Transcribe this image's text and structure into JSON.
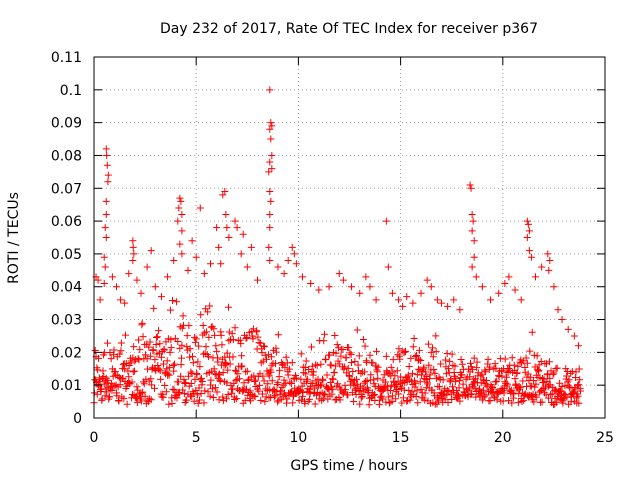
{
  "chart_data": {
    "type": "scatter",
    "title": "Day 232 of 2017, Rate Of TEC Index for receiver p367",
    "xlabel": "GPS time / hours",
    "ylabel": "ROTI / TECUs",
    "xlim": [
      0,
      25
    ],
    "ylim": [
      0,
      0.11
    ],
    "xticks": [
      0,
      5,
      10,
      15,
      20,
      25
    ],
    "yticks": [
      0,
      0.01,
      0.02,
      0.03,
      0.04,
      0.05,
      0.06,
      0.07,
      0.08,
      0.09,
      0.1,
      0.11
    ],
    "grid": true,
    "marker": "plus",
    "series": [
      {
        "color": "#ff0000",
        "points": [
          [
            0.1,
            0.043
          ],
          [
            0.2,
            0.042
          ],
          [
            0.3,
            0.036
          ],
          [
            0.5,
            0.041
          ],
          [
            0.6,
            0.082
          ],
          [
            0.62,
            0.08
          ],
          [
            0.65,
            0.077
          ],
          [
            0.7,
            0.074
          ],
          [
            0.68,
            0.072
          ],
          [
            0.6,
            0.066
          ],
          [
            0.6,
            0.062
          ],
          [
            0.55,
            0.058
          ],
          [
            0.6,
            0.055
          ],
          [
            0.5,
            0.049
          ],
          [
            0.55,
            0.046
          ],
          [
            0.9,
            0.043
          ],
          [
            1.1,
            0.04
          ],
          [
            1.3,
            0.036
          ],
          [
            1.5,
            0.035
          ],
          [
            1.7,
            0.044
          ],
          [
            1.9,
            0.054
          ],
          [
            1.92,
            0.052
          ],
          [
            1.95,
            0.05
          ],
          [
            1.9,
            0.048
          ],
          [
            2.1,
            0.042
          ],
          [
            2.3,
            0.038
          ],
          [
            2.6,
            0.046
          ],
          [
            2.8,
            0.051
          ],
          [
            3.0,
            0.04
          ],
          [
            3.3,
            0.037
          ],
          [
            3.6,
            0.043
          ],
          [
            3.9,
            0.048
          ],
          [
            4.1,
            0.06
          ],
          [
            4.15,
            0.064
          ],
          [
            4.2,
            0.067
          ],
          [
            4.25,
            0.066
          ],
          [
            4.3,
            0.062
          ],
          [
            4.3,
            0.057
          ],
          [
            4.2,
            0.053
          ],
          [
            4.3,
            0.05
          ],
          [
            4.6,
            0.045
          ],
          [
            4.8,
            0.054
          ],
          [
            5.0,
            0.049
          ],
          [
            5.2,
            0.064
          ],
          [
            5.4,
            0.044
          ],
          [
            5.7,
            0.047
          ],
          [
            6.0,
            0.058
          ],
          [
            6.1,
            0.052
          ],
          [
            6.2,
            0.047
          ],
          [
            6.3,
            0.068
          ],
          [
            6.4,
            0.069
          ],
          [
            6.45,
            0.062
          ],
          [
            6.5,
            0.058
          ],
          [
            6.6,
            0.055
          ],
          [
            6.9,
            0.06
          ],
          [
            7.0,
            0.058
          ],
          [
            7.2,
            0.05
          ],
          [
            7.3,
            0.056
          ],
          [
            7.5,
            0.046
          ],
          [
            7.7,
            0.052
          ],
          [
            8.0,
            0.042
          ],
          [
            8.6,
            0.1
          ],
          [
            8.65,
            0.09
          ],
          [
            8.7,
            0.089
          ],
          [
            8.6,
            0.088
          ],
          [
            8.65,
            0.085
          ],
          [
            8.7,
            0.08
          ],
          [
            8.6,
            0.078
          ],
          [
            8.7,
            0.076
          ],
          [
            8.55,
            0.075
          ],
          [
            8.6,
            0.069
          ],
          [
            8.65,
            0.066
          ],
          [
            8.6,
            0.062
          ],
          [
            8.6,
            0.058
          ],
          [
            8.55,
            0.052
          ],
          [
            8.6,
            0.048
          ],
          [
            9.0,
            0.046
          ],
          [
            9.3,
            0.044
          ],
          [
            9.5,
            0.048
          ],
          [
            9.7,
            0.052
          ],
          [
            9.8,
            0.05
          ],
          [
            9.9,
            0.047
          ],
          [
            10.2,
            0.043
          ],
          [
            10.6,
            0.041
          ],
          [
            11.0,
            0.039
          ],
          [
            11.5,
            0.04
          ],
          [
            12.0,
            0.044
          ],
          [
            12.2,
            0.042
          ],
          [
            12.6,
            0.04
          ],
          [
            13.0,
            0.038
          ],
          [
            13.3,
            0.043
          ],
          [
            13.5,
            0.04
          ],
          [
            13.8,
            0.036
          ],
          [
            14.3,
            0.06
          ],
          [
            14.4,
            0.046
          ],
          [
            14.6,
            0.038
          ],
          [
            14.9,
            0.036
          ],
          [
            15.1,
            0.034
          ],
          [
            15.3,
            0.037
          ],
          [
            15.6,
            0.035
          ],
          [
            16.0,
            0.038
          ],
          [
            16.3,
            0.042
          ],
          [
            16.5,
            0.04
          ],
          [
            16.8,
            0.036
          ],
          [
            17.0,
            0.035
          ],
          [
            17.3,
            0.034
          ],
          [
            17.6,
            0.036
          ],
          [
            17.9,
            0.033
          ],
          [
            18.4,
            0.071
          ],
          [
            18.45,
            0.07
          ],
          [
            18.5,
            0.062
          ],
          [
            18.55,
            0.06
          ],
          [
            18.5,
            0.057
          ],
          [
            18.6,
            0.054
          ],
          [
            18.6,
            0.049
          ],
          [
            18.5,
            0.046
          ],
          [
            18.7,
            0.043
          ],
          [
            19.0,
            0.04
          ],
          [
            19.4,
            0.036
          ],
          [
            19.8,
            0.038
          ],
          [
            20.1,
            0.041
          ],
          [
            20.3,
            0.043
          ],
          [
            20.6,
            0.039
          ],
          [
            20.9,
            0.036
          ],
          [
            21.2,
            0.06
          ],
          [
            21.25,
            0.059
          ],
          [
            21.3,
            0.057
          ],
          [
            21.2,
            0.055
          ],
          [
            21.3,
            0.051
          ],
          [
            21.4,
            0.049
          ],
          [
            21.6,
            0.043
          ],
          [
            21.9,
            0.046
          ],
          [
            22.2,
            0.05
          ],
          [
            22.3,
            0.048
          ],
          [
            22.25,
            0.045
          ],
          [
            22.5,
            0.04
          ],
          [
            22.7,
            0.033
          ],
          [
            22.9,
            0.03
          ],
          [
            23.2,
            0.027
          ],
          [
            23.5,
            0.025
          ],
          [
            23.7,
            0.022
          ]
        ]
      }
    ],
    "band": {
      "x_start": 0.0,
      "x_end": 23.8,
      "x_step": 0.02,
      "base_min": 0.004,
      "base_spread": 0.02,
      "tail_spread": 0.012,
      "tail_prob": 0.35,
      "activity": [
        [
          0,
          0.55
        ],
        [
          2,
          0.9
        ],
        [
          4,
          1.0
        ],
        [
          6,
          1.05
        ],
        [
          8,
          1.0
        ],
        [
          9.2,
          0.55
        ],
        [
          10,
          0.45
        ],
        [
          11,
          0.65
        ],
        [
          12,
          0.9
        ],
        [
          13,
          0.8
        ],
        [
          14.2,
          0.45
        ],
        [
          15,
          0.7
        ],
        [
          16,
          0.75
        ],
        [
          17.5,
          0.55
        ],
        [
          18.5,
          0.6
        ],
        [
          19.5,
          0.45
        ],
        [
          20.5,
          0.65
        ],
        [
          21.5,
          0.7
        ],
        [
          22.5,
          0.5
        ],
        [
          23.8,
          0.35
        ]
      ]
    }
  }
}
